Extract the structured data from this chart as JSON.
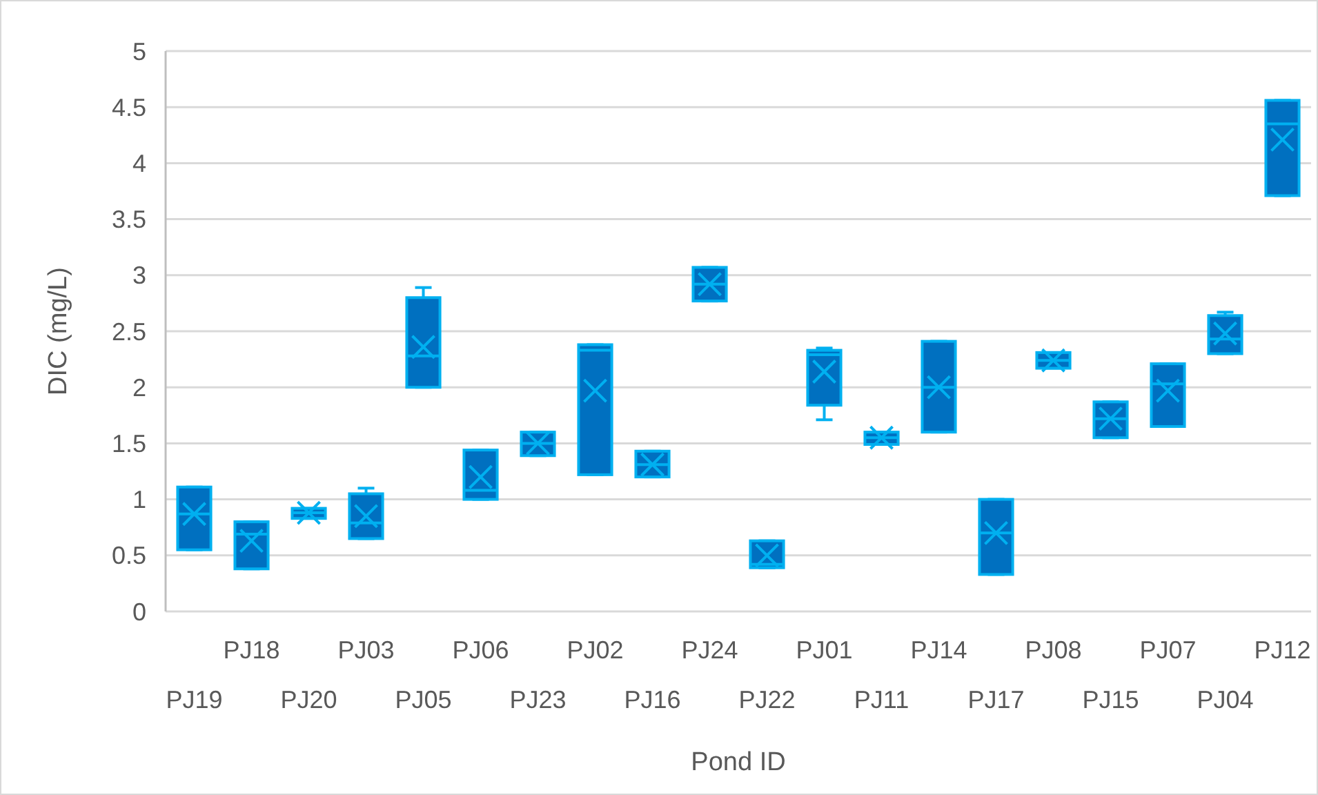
{
  "chart_data": {
    "type": "box",
    "xlabel": "Pond ID",
    "ylabel": "DIC (mg/L)",
    "categories": [
      "PJ19",
      "PJ18",
      "PJ20",
      "PJ03",
      "PJ05",
      "PJ06",
      "PJ23",
      "PJ02",
      "PJ16",
      "PJ24",
      "PJ22",
      "PJ01",
      "PJ11",
      "PJ14",
      "PJ17",
      "PJ08",
      "PJ15",
      "PJ07",
      "PJ04",
      "PJ12"
    ],
    "color": "#0070c0",
    "boxes": [
      {
        "low": 0.55,
        "q1": 0.55,
        "median": 0.87,
        "q3": 1.11,
        "high": 1.11,
        "mean": 0.87
      },
      {
        "low": 0.38,
        "q1": 0.38,
        "median": 0.69,
        "q3": 0.8,
        "high": 0.8,
        "mean": 0.63
      },
      {
        "low": 0.83,
        "q1": 0.83,
        "median": 0.88,
        "q3": 0.92,
        "high": 0.92,
        "mean": 0.88
      },
      {
        "low": 0.65,
        "q1": 0.65,
        "median": 0.79,
        "q3": 1.05,
        "high": 1.1,
        "mean": 0.85
      },
      {
        "low": 2.0,
        "q1": 2.0,
        "median": 2.28,
        "q3": 2.8,
        "high": 2.89,
        "mean": 2.36
      },
      {
        "low": 1.0,
        "q1": 1.0,
        "median": 1.08,
        "q3": 1.44,
        "high": 1.44,
        "mean": 1.2
      },
      {
        "low": 1.39,
        "q1": 1.39,
        "median": 1.5,
        "q3": 1.6,
        "high": 1.6,
        "mean": 1.5
      },
      {
        "low": 1.22,
        "q1": 1.22,
        "median": 2.33,
        "q3": 2.38,
        "high": 2.38,
        "mean": 1.97
      },
      {
        "low": 1.2,
        "q1": 1.2,
        "median": 1.31,
        "q3": 1.43,
        "high": 1.43,
        "mean": 1.31
      },
      {
        "low": 2.77,
        "q1": 2.77,
        "median": 2.92,
        "q3": 3.07,
        "high": 3.07,
        "mean": 2.92
      },
      {
        "low": 0.39,
        "q1": 0.39,
        "median": 0.42,
        "q3": 0.63,
        "high": 0.63,
        "mean": 0.5
      },
      {
        "low": 1.71,
        "q1": 1.84,
        "median": 2.29,
        "q3": 2.33,
        "high": 2.35,
        "mean": 2.14
      },
      {
        "low": 1.49,
        "q1": 1.49,
        "median": 1.55,
        "q3": 1.6,
        "high": 1.6,
        "mean": 1.55
      },
      {
        "low": 1.6,
        "q1": 1.6,
        "median": 2.0,
        "q3": 2.41,
        "high": 2.41,
        "mean": 2.0
      },
      {
        "low": 0.33,
        "q1": 0.33,
        "median": 0.7,
        "q3": 1.0,
        "high": 1.0,
        "mean": 0.7
      },
      {
        "low": 2.17,
        "q1": 2.17,
        "median": 2.24,
        "q3": 2.31,
        "high": 2.31,
        "mean": 2.24
      },
      {
        "low": 1.55,
        "q1": 1.55,
        "median": 1.72,
        "q3": 1.87,
        "high": 1.87,
        "mean": 1.72
      },
      {
        "low": 1.65,
        "q1": 1.65,
        "median": 2.03,
        "q3": 2.21,
        "high": 2.21,
        "mean": 1.97
      },
      {
        "low": 2.3,
        "q1": 2.3,
        "median": 2.43,
        "q3": 2.64,
        "high": 2.67,
        "mean": 2.48
      },
      {
        "low": 3.71,
        "q1": 3.71,
        "median": 4.35,
        "q3": 4.56,
        "high": 4.56,
        "mean": 4.21
      }
    ],
    "ylim": [
      0,
      5
    ],
    "yticks": [
      0,
      0.5,
      1,
      1.5,
      2,
      2.5,
      3,
      3.5,
      4,
      4.5,
      5
    ],
    "grid": "y",
    "marker": "cross"
  }
}
